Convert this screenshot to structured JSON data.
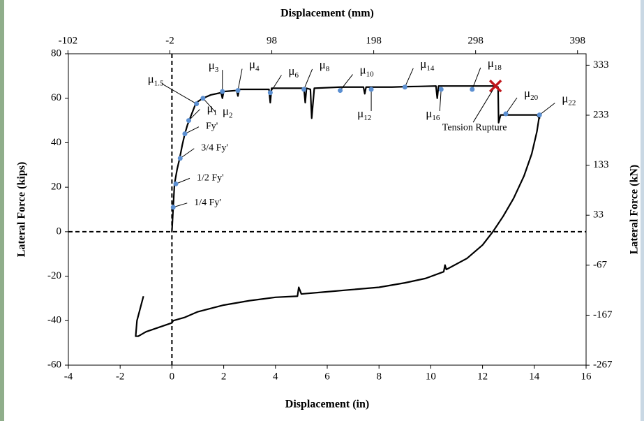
{
  "chart_data": {
    "type": "line",
    "xlabel": "Displacement (in)",
    "ylabel": "Lateral Force (kips)",
    "x2label": "Displacement (mm)",
    "y2label": "Lateral Force (kN)",
    "xlim": [
      -4,
      16
    ],
    "xticks": [
      -4,
      -2,
      0,
      2,
      4,
      6,
      8,
      10,
      12,
      14,
      16
    ],
    "ylim": [
      -60,
      80
    ],
    "yticks": [
      -60,
      -40,
      -20,
      0,
      20,
      40,
      60,
      80
    ],
    "x2lim": [
      -101.6,
      406.4
    ],
    "x2ticks": [
      -102,
      -2,
      98,
      198,
      298,
      398
    ],
    "y2lim": [
      -266.9,
      355.9
    ],
    "y2ticks": [
      -267,
      -167,
      -67,
      33,
      133,
      233,
      333
    ],
    "series": [
      {
        "color": "#000000",
        "x": [
          0,
          0.05,
          0.1,
          0.2,
          0.3,
          0.4,
          0.5,
          0.6,
          0.7,
          0.8,
          0.9,
          1.0,
          1.2,
          1.5,
          1.9,
          1.95,
          2.0,
          2.5,
          2.55,
          2.6,
          3.0,
          3.75,
          3.8,
          3.85,
          4.5,
          5.1,
          5.15,
          5.2,
          5.35,
          5.4,
          5.5,
          6.5,
          7.0,
          7.4,
          7.45,
          7.5,
          7.7,
          8.5,
          9.0,
          9.5,
          10.2,
          10.25,
          10.3,
          10.4,
          11.0,
          11.5,
          12.0,
          12.5,
          12.6,
          12.62,
          12.7,
          13.5,
          14.1,
          14.2,
          14.2,
          14.1,
          13.9,
          13.6,
          13.2,
          12.8,
          12.4,
          12.0,
          11.4,
          10.6,
          10.55,
          10.5,
          9.8,
          9.0,
          8.0,
          7.0,
          6.0,
          5.0,
          4.9,
          4.85,
          4.0,
          3.0,
          2.0,
          1.0,
          0.5,
          0.05,
          0,
          -0.5,
          -1.0,
          -1.3,
          -1.4,
          -1.35,
          -1.1
        ],
        "values": [
          0,
          11,
          21.5,
          28,
          33,
          39,
          44,
          48,
          51,
          54,
          57,
          58.5,
          60,
          61.5,
          62.5,
          60,
          63,
          63.5,
          61,
          64,
          64,
          64,
          58,
          64.5,
          64.5,
          64.5,
          58,
          64.5,
          64,
          51,
          64.5,
          65,
          65,
          65,
          62,
          65,
          65,
          65,
          65.2,
          65.3,
          65.5,
          60,
          65.5,
          65.5,
          65.5,
          65.5,
          65.5,
          65.5,
          65,
          49,
          52.5,
          52.5,
          52.5,
          51,
          52.5,
          45,
          35,
          25,
          15,
          7,
          0,
          -6,
          -12,
          -17,
          -15,
          -18,
          -21,
          -23,
          -25,
          -26,
          -27,
          -28,
          -25,
          -29,
          -29.5,
          -31,
          -33,
          -36,
          -38.5,
          -40,
          -41,
          -43,
          -45,
          -47,
          -47,
          -40,
          -29
        ]
      }
    ],
    "points": {
      "color": "#5b8fd1",
      "x": [
        0.05,
        0.15,
        0.32,
        0.5,
        0.65,
        0.95,
        1.2,
        1.95,
        2.55,
        3.8,
        5.1,
        6.5,
        7.7,
        9.0,
        10.4,
        11.6,
        12.9,
        14.2
      ],
      "values": [
        11,
        21.5,
        33,
        44,
        50,
        57.5,
        60,
        63,
        63.5,
        62.5,
        64,
        63.5,
        64,
        65,
        64,
        64,
        53,
        52.5
      ],
      "labels": [
        {
          "text": "1/4 Fy'"
        },
        {
          "text": "1/2 Fy'"
        },
        {
          "text": "3/4 Fy'"
        },
        {
          "text": "Fy'"
        },
        {
          "text": "μ",
          "sub": "1"
        },
        {
          "text": "μ",
          "sub": "1.5"
        },
        {
          "text": "μ",
          "sub": "2"
        },
        {
          "text": "μ",
          "sub": "3"
        },
        {
          "text": "μ",
          "sub": "4"
        },
        {
          "text": "μ",
          "sub": "6"
        },
        {
          "text": "μ",
          "sub": "8"
        },
        {
          "text": "μ",
          "sub": "10"
        },
        {
          "text": "μ",
          "sub": "12"
        },
        {
          "text": "μ",
          "sub": "14"
        },
        {
          "text": "μ",
          "sub": "16"
        },
        {
          "text": "μ",
          "sub": "18"
        },
        {
          "text": "μ",
          "sub": "20"
        },
        {
          "text": "μ",
          "sub": "22"
        }
      ]
    },
    "rupture": {
      "x": 12.5,
      "y": 65.5,
      "label": "Tension Rupture",
      "color": "#c0161c"
    }
  }
}
